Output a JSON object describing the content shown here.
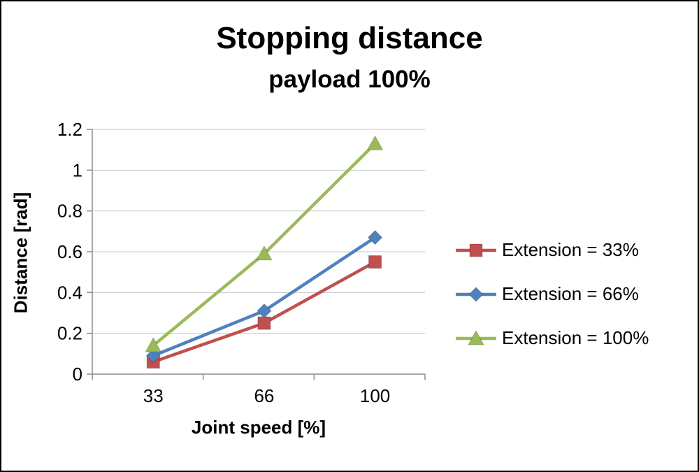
{
  "chart_data": {
    "type": "line",
    "title": "Stopping distance",
    "subtitle": "payload 100%",
    "xlabel": "Joint speed [%]",
    "ylabel": "Distance [rad]",
    "categories": [
      "33",
      "66",
      "100"
    ],
    "series": [
      {
        "name": "Extension = 33%",
        "values": [
          0.06,
          0.25,
          0.55
        ],
        "color": "#C0504D",
        "marker": "square"
      },
      {
        "name": "Extension = 66%",
        "values": [
          0.09,
          0.31,
          0.67
        ],
        "color": "#4F81BD",
        "marker": "diamond"
      },
      {
        "name": "Extension = 100%",
        "values": [
          0.14,
          0.59,
          1.13
        ],
        "color": "#9BBB59",
        "marker": "triangle"
      }
    ],
    "ylim": [
      0,
      1.2
    ],
    "ytick_step": 0.2,
    "ytick_labels": [
      "0",
      "0.2",
      "0.4",
      "0.6",
      "0.8",
      "1",
      "1.2"
    ],
    "grid": true,
    "legend_position": "right",
    "colors": {
      "gridline": "#C6C6C6",
      "axis": "#8C8C8C",
      "text": "#000000"
    }
  }
}
